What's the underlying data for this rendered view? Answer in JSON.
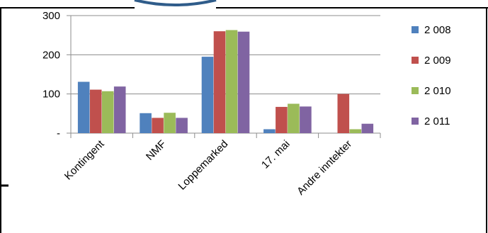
{
  "chart_data": {
    "type": "bar",
    "categories": [
      "Kontingent",
      "NMF",
      "Loppemarked",
      "17. mai",
      "Andre inntekter"
    ],
    "series": [
      {
        "name": "2 008",
        "color": "#4F81BD",
        "values": [
          131,
          51,
          195,
          10,
          0
        ]
      },
      {
        "name": "2 009",
        "color": "#C0504D",
        "values": [
          111,
          39,
          260,
          67,
          100
        ]
      },
      {
        "name": "2 010",
        "color": "#9BBB59",
        "values": [
          107,
          52,
          263,
          75,
          10
        ]
      },
      {
        "name": "2 011",
        "color": "#8064A2",
        "values": [
          119,
          39,
          259,
          68,
          24
        ]
      }
    ],
    "y_ticks": [
      {
        "value": 0,
        "label": "-"
      },
      {
        "value": 100,
        "label": "100"
      },
      {
        "value": 200,
        "label": "200"
      },
      {
        "value": 300,
        "label": "300"
      }
    ],
    "ylim": [
      0,
      300
    ],
    "title": "",
    "xlabel": "",
    "ylabel": "",
    "grid": true,
    "legend": "right"
  }
}
